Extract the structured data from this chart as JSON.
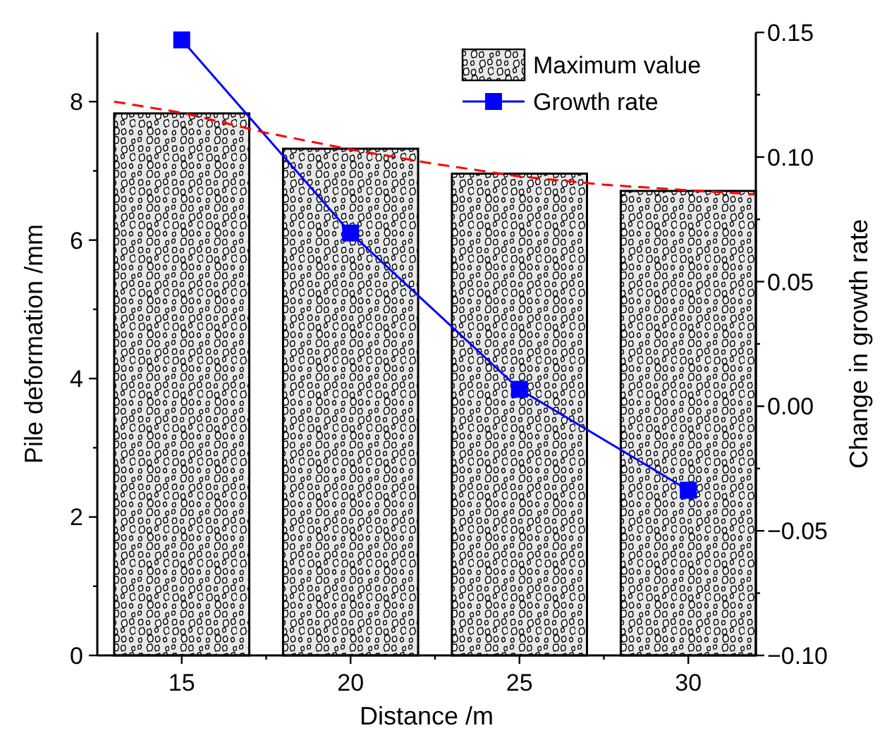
{
  "chart_data": {
    "type": "bar",
    "xlabel": "Distance /m",
    "ylabel": "Pile deformation /mm",
    "y2label": "Change in growth rate",
    "x": [
      15,
      20,
      25,
      30
    ],
    "xlim": [
      12.5,
      32
    ],
    "xticks": [
      15,
      {
        "value": 17.5,
        "label": null
      },
      20,
      {
        "value": 22.5,
        "label": null
      },
      25,
      {
        "value": 27.5,
        "label": null
      },
      30
    ],
    "ylim": [
      0,
      9
    ],
    "yticks": [
      0,
      {
        "value": 1,
        "label": null
      },
      2,
      {
        "value": 3,
        "label": null
      },
      4,
      {
        "value": 5,
        "label": null
      },
      6,
      {
        "value": 7,
        "label": null
      },
      8
    ],
    "y2lim": [
      -0.1,
      0.15
    ],
    "y2ticks": [
      {
        "value": -0.1,
        "label": "−0.10"
      },
      {
        "value": -0.075,
        "label": null
      },
      {
        "value": -0.05,
        "label": "−0.05"
      },
      {
        "value": -0.025,
        "label": null
      },
      {
        "value": 0,
        "label": "0.00"
      },
      {
        "value": 0.025,
        "label": null
      },
      {
        "value": 0.05,
        "label": "0.05"
      },
      {
        "value": 0.075,
        "label": null
      },
      {
        "value": 0.1,
        "label": "0.10"
      },
      {
        "value": 0.125,
        "label": null
      },
      {
        "value": 0.15,
        "label": "0.15"
      }
    ],
    "series": [
      {
        "name": "Maximum value",
        "color": "#000000",
        "values": [
          7.83,
          7.32,
          6.96,
          6.71
        ]
      },
      {
        "name": "Growth rate",
        "type": "line",
        "axis": "y2",
        "color": "#0000ff",
        "marker": "square",
        "line_style": "solid",
        "values": [
          0.147,
          0.0695,
          0.0068,
          -0.0337
        ]
      },
      {
        "type": "line",
        "color": "#ff0000",
        "line_style": "dashed",
        "marker": "none",
        "x": [
          13,
          15,
          17.5,
          20,
          22.5,
          25,
          27.5,
          30,
          32
        ],
        "values": [
          8.0,
          7.84,
          7.55,
          7.31,
          7.1,
          6.92,
          6.8,
          6.72,
          6.66
        ]
      }
    ],
    "legend": "top right",
    "grid": false
  }
}
